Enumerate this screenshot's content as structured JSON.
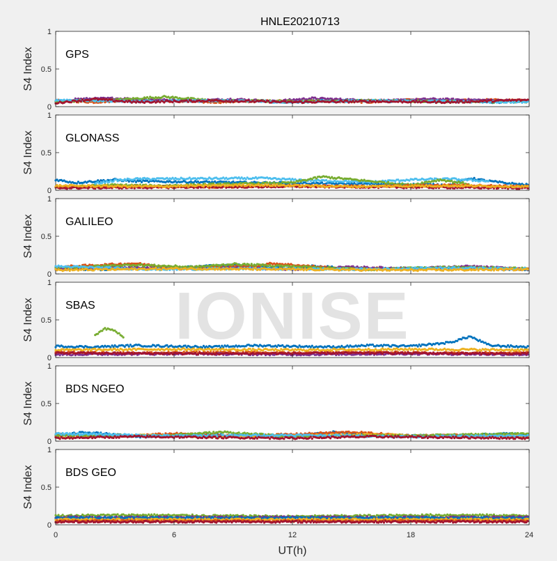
{
  "chart_data": {
    "type": "scatter",
    "title": "HNLE20210713",
    "xlabel": "UT(h)",
    "ylabel": "S4 Index",
    "xlim": [
      0,
      24
    ],
    "ylim": [
      0,
      1
    ],
    "x_ticks": [
      "0",
      "6",
      "12",
      "18",
      "24"
    ],
    "y_ticks": [
      "0",
      "0.5",
      "1"
    ],
    "watermark": "IONISE",
    "grid": false,
    "series_colors": [
      "#0072bd",
      "#d95319",
      "#edb120",
      "#7e2f8e",
      "#77ac30",
      "#4dbeee",
      "#a2142f"
    ],
    "panels": [
      {
        "label": "GPS",
        "tracks": [
          {
            "color": 0,
            "x": [
              0,
              2,
              4,
              6,
              8,
              10,
              12,
              14,
              16,
              18,
              20,
              22,
              24
            ],
            "y": [
              0.06,
              0.09,
              0.07,
              0.08,
              0.07,
              0.08,
              0.06,
              0.09,
              0.07,
              0.08,
              0.07,
              0.06,
              0.07
            ]
          },
          {
            "color": 1,
            "x": [
              0,
              2,
              4,
              6,
              8,
              10,
              12,
              14,
              16,
              18,
              20,
              22,
              24
            ],
            "y": [
              0.08,
              0.06,
              0.09,
              0.07,
              0.06,
              0.07,
              0.08,
              0.07,
              0.06,
              0.09,
              0.08,
              0.09,
              0.08
            ]
          },
          {
            "color": 3,
            "x": [
              1,
              3,
              5,
              7,
              9,
              11,
              13,
              15,
              17,
              19,
              21,
              23
            ],
            "y": [
              0.1,
              0.11,
              0.09,
              0.08,
              0.1,
              0.07,
              0.11,
              0.09,
              0.08,
              0.1,
              0.09,
              0.08
            ]
          },
          {
            "color": 4,
            "x": [
              0,
              3,
              5.5,
              8,
              12,
              16,
              20,
              24
            ],
            "y": [
              0.07,
              0.09,
              0.13,
              0.08,
              0.07,
              0.08,
              0.07,
              0.06
            ]
          },
          {
            "color": 5,
            "x": [
              0,
              4,
              8,
              12,
              16,
              20,
              24
            ],
            "y": [
              0.09,
              0.07,
              0.08,
              0.06,
              0.08,
              0.07,
              0.06
            ]
          },
          {
            "color": 6,
            "x": [
              0,
              2,
              4,
              8,
              12,
              16,
              20,
              24
            ],
            "y": [
              0.05,
              0.1,
              0.06,
              0.08,
              0.06,
              0.07,
              0.06,
              0.09
            ]
          }
        ]
      },
      {
        "label": "GLONASS",
        "tracks": [
          {
            "color": 0,
            "x": [
              0,
              1,
              2,
              3,
              4,
              20,
              21,
              22,
              23,
              24
            ],
            "y": [
              0.14,
              0.1,
              0.12,
              0.14,
              0.12,
              0.07,
              0.16,
              0.12,
              0.09,
              0.07
            ]
          },
          {
            "color": 5,
            "x": [
              2,
              3,
              4,
              10.5,
              12,
              13,
              16,
              18,
              20,
              22
            ],
            "y": [
              0.09,
              0.13,
              0.15,
              0.16,
              0.14,
              0.13,
              0.11,
              0.14,
              0.15,
              0.12
            ]
          },
          {
            "color": 4,
            "x": [
              1,
              3,
              5,
              12,
              13.5,
              18,
              19.5,
              21
            ],
            "y": [
              0.05,
              0.07,
              0.06,
              0.1,
              0.18,
              0.07,
              0.14,
              0.08
            ]
          },
          {
            "color": 1,
            "x": [
              0,
              4,
              8,
              12,
              16,
              20,
              24
            ],
            "y": [
              0.04,
              0.05,
              0.04,
              0.06,
              0.05,
              0.07,
              0.05
            ]
          },
          {
            "color": 6,
            "x": [
              0,
              6,
              12,
              18,
              24
            ],
            "y": [
              0.03,
              0.04,
              0.05,
              0.04,
              0.03
            ]
          },
          {
            "color": 2,
            "x": [
              0,
              5,
              10,
              15,
              20,
              24
            ],
            "y": [
              0.06,
              0.05,
              0.07,
              0.05,
              0.06,
              0.05
            ]
          }
        ]
      },
      {
        "label": "GALILEO",
        "tracks": [
          {
            "color": 0,
            "x": [
              0,
              2,
              6,
              9,
              12,
              13,
              16,
              20,
              24
            ],
            "y": [
              0.07,
              0.06,
              0.08,
              0.12,
              0.07,
              0.1,
              0.07,
              0.08,
              0.06
            ]
          },
          {
            "color": 1,
            "x": [
              0,
              4,
              6,
              10,
              11,
              14,
              18,
              22,
              24
            ],
            "y": [
              0.09,
              0.14,
              0.08,
              0.1,
              0.14,
              0.08,
              0.07,
              0.08,
              0.06
            ]
          },
          {
            "color": 3,
            "x": [
              0,
              3,
              6,
              9,
              12,
              15,
              18,
              21,
              24
            ],
            "y": [
              0.06,
              0.09,
              0.07,
              0.08,
              0.06,
              0.09,
              0.07,
              0.1,
              0.06
            ]
          },
          {
            "color": 4,
            "x": [
              0,
              4,
              7,
              9,
              12,
              16,
              20,
              24
            ],
            "y": [
              0.08,
              0.12,
              0.09,
              0.13,
              0.1,
              0.06,
              0.09,
              0.07
            ]
          },
          {
            "color": 5,
            "x": [
              0,
              5,
              10,
              15,
              20,
              24
            ],
            "y": [
              0.1,
              0.06,
              0.07,
              0.06,
              0.08,
              0.07
            ]
          },
          {
            "color": 2,
            "x": [
              0,
              6,
              12,
              18,
              24
            ],
            "y": [
              0.05,
              0.07,
              0.06,
              0.05,
              0.06
            ]
          }
        ]
      },
      {
        "label": "SBAS",
        "tracks": [
          {
            "color": 0,
            "x": [
              0,
              2,
              4,
              6,
              8,
              10,
              12,
              14,
              16,
              18,
              20,
              21,
              22,
              24
            ],
            "y": [
              0.15,
              0.14,
              0.16,
              0.15,
              0.14,
              0.16,
              0.15,
              0.14,
              0.16,
              0.15,
              0.2,
              0.28,
              0.16,
              0.14
            ]
          },
          {
            "color": 1,
            "x": [
              0,
              4,
              8,
              12,
              16,
              20,
              24
            ],
            "y": [
              0.07,
              0.06,
              0.07,
              0.06,
              0.07,
              0.06,
              0.07
            ]
          },
          {
            "color": 3,
            "x": [
              0,
              6,
              12,
              18,
              24
            ],
            "y": [
              0.04,
              0.05,
              0.04,
              0.05,
              0.04
            ]
          },
          {
            "color": 2,
            "x": [
              0,
              6,
              12,
              18,
              24
            ],
            "y": [
              0.1,
              0.11,
              0.1,
              0.11,
              0.1
            ]
          },
          {
            "color": 6,
            "x": [
              0,
              8,
              16,
              24
            ],
            "y": [
              0.06,
              0.05,
              0.06,
              0.05
            ]
          },
          {
            "color": 4,
            "x": [
              2,
              2.5,
              3,
              3.5
            ],
            "y": [
              0.3,
              0.38,
              0.36,
              0.25
            ]
          }
        ]
      },
      {
        "label": "BDS NGEO",
        "tracks": [
          {
            "color": 0,
            "x": [
              0,
              1.5,
              4,
              8,
              12,
              14,
              16,
              20,
              23,
              24
            ],
            "y": [
              0.07,
              0.12,
              0.06,
              0.08,
              0.06,
              0.12,
              0.08,
              0.07,
              0.1,
              0.08
            ]
          },
          {
            "color": 1,
            "x": [
              0,
              3,
              6,
              9,
              12,
              15,
              18,
              21,
              24
            ],
            "y": [
              0.09,
              0.06,
              0.1,
              0.07,
              0.09,
              0.12,
              0.07,
              0.08,
              0.05
            ]
          },
          {
            "color": 2,
            "x": [
              0,
              4,
              8,
              12,
              16,
              20,
              24
            ],
            "y": [
              0.05,
              0.08,
              0.06,
              0.07,
              0.09,
              0.06,
              0.07
            ]
          },
          {
            "color": 4,
            "x": [
              0,
              5,
              8.5,
              12,
              16,
              20,
              24
            ],
            "y": [
              0.08,
              0.07,
              0.12,
              0.06,
              0.07,
              0.08,
              0.1
            ]
          },
          {
            "color": 5,
            "x": [
              0,
              6,
              12,
              18,
              24
            ],
            "y": [
              0.1,
              0.07,
              0.08,
              0.06,
              0.07
            ]
          },
          {
            "color": 6,
            "x": [
              0,
              4,
              8,
              12,
              16,
              20,
              24
            ],
            "y": [
              0.04,
              0.06,
              0.05,
              0.04,
              0.06,
              0.05,
              0.04
            ]
          }
        ]
      },
      {
        "label": "BDS GEO",
        "tracks": [
          {
            "color": 4,
            "x": [
              0,
              4,
              8,
              12,
              16,
              20,
              24
            ],
            "y": [
              0.12,
              0.13,
              0.12,
              0.11,
              0.12,
              0.13,
              0.12
            ]
          },
          {
            "color": 3,
            "x": [
              0,
              6,
              12,
              18,
              24
            ],
            "y": [
              0.1,
              0.1,
              0.1,
              0.1,
              0.1
            ]
          },
          {
            "color": 0,
            "x": [
              0,
              6,
              12,
              18,
              24
            ],
            "y": [
              0.09,
              0.09,
              0.09,
              0.09,
              0.09
            ]
          },
          {
            "color": 2,
            "x": [
              0,
              6,
              12,
              18,
              24
            ],
            "y": [
              0.07,
              0.07,
              0.07,
              0.07,
              0.07
            ]
          },
          {
            "color": 1,
            "x": [
              0,
              6,
              12,
              18,
              24
            ],
            "y": [
              0.05,
              0.05,
              0.05,
              0.05,
              0.05
            ]
          },
          {
            "color": 6,
            "x": [
              0,
              6,
              12,
              18,
              24
            ],
            "y": [
              0.04,
              0.04,
              0.04,
              0.04,
              0.04
            ]
          }
        ]
      }
    ]
  }
}
